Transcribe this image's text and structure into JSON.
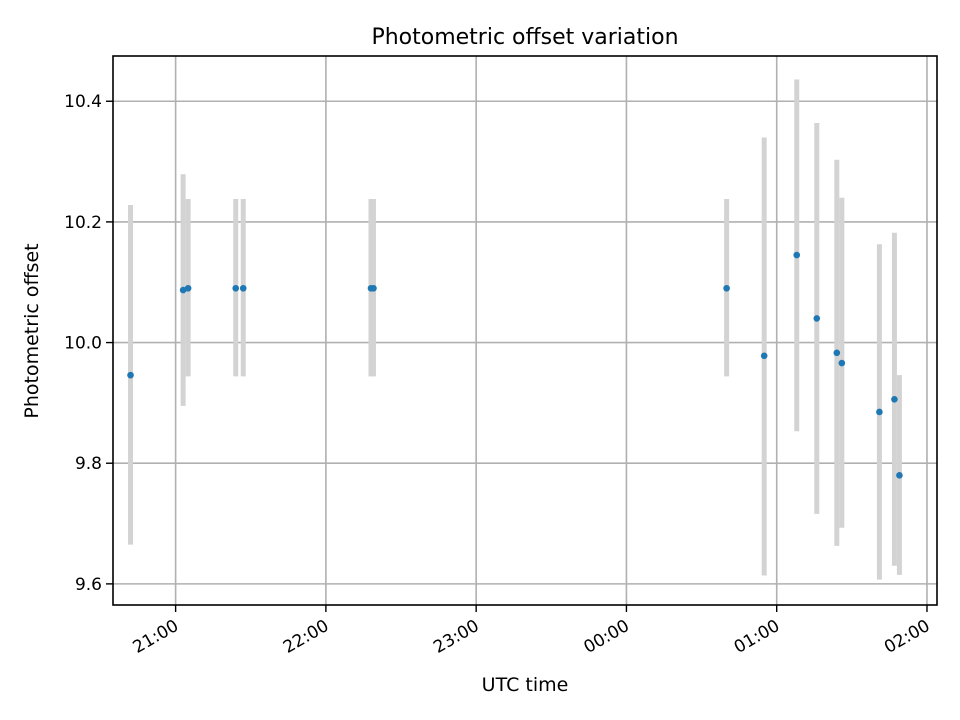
{
  "chart_data": {
    "type": "scatter",
    "title": "Photometric offset variation",
    "xlabel": "UTC time",
    "ylabel": "Photometric offset",
    "x_unit": "UTC time (HH:MM)",
    "xlim": [
      "20:35",
      "02:04"
    ],
    "ylim": [
      9.565,
      10.475
    ],
    "x_ticks": [
      "21:00",
      "22:00",
      "23:00",
      "00:00",
      "01:00",
      "02:00"
    ],
    "y_ticks": [
      "9.6",
      "9.8",
      "10.0",
      "10.2",
      "10.4"
    ],
    "grid": true,
    "marker_color": "#1f77b4",
    "errorbar_color": "#d3d3d3",
    "series": [
      {
        "points": [
          {
            "time": "20:42",
            "y": 9.946,
            "low": 9.665,
            "high": 10.228
          },
          {
            "time": "21:03",
            "y": 10.087,
            "low": 9.895,
            "high": 10.279
          },
          {
            "time": "21:05",
            "y": 10.09,
            "low": 9.944,
            "high": 10.238
          },
          {
            "time": "21:24",
            "y": 10.09,
            "low": 9.944,
            "high": 10.238
          },
          {
            "time": "21:27",
            "y": 10.09,
            "low": 9.944,
            "high": 10.238
          },
          {
            "time": "22:18",
            "y": 10.09,
            "low": 9.944,
            "high": 10.238
          },
          {
            "time": "22:19",
            "y": 10.09,
            "low": 9.944,
            "high": 10.238
          },
          {
            "time": "00:40",
            "y": 10.09,
            "low": 9.944,
            "high": 10.238
          },
          {
            "time": "00:55",
            "y": 9.978,
            "low": 9.614,
            "high": 10.34
          },
          {
            "time": "01:08",
            "y": 10.145,
            "low": 9.853,
            "high": 10.436
          },
          {
            "time": "01:16",
            "y": 10.04,
            "low": 9.716,
            "high": 10.364
          },
          {
            "time": "01:24",
            "y": 9.983,
            "low": 9.663,
            "high": 10.303
          },
          {
            "time": "01:26",
            "y": 9.966,
            "low": 9.693,
            "high": 10.24
          },
          {
            "time": "01:41",
            "y": 9.885,
            "low": 9.607,
            "high": 10.163
          },
          {
            "time": "01:47",
            "y": 9.906,
            "low": 9.63,
            "high": 10.182
          },
          {
            "time": "01:49",
            "y": 9.78,
            "low": 9.615,
            "high": 9.946
          }
        ]
      }
    ]
  }
}
